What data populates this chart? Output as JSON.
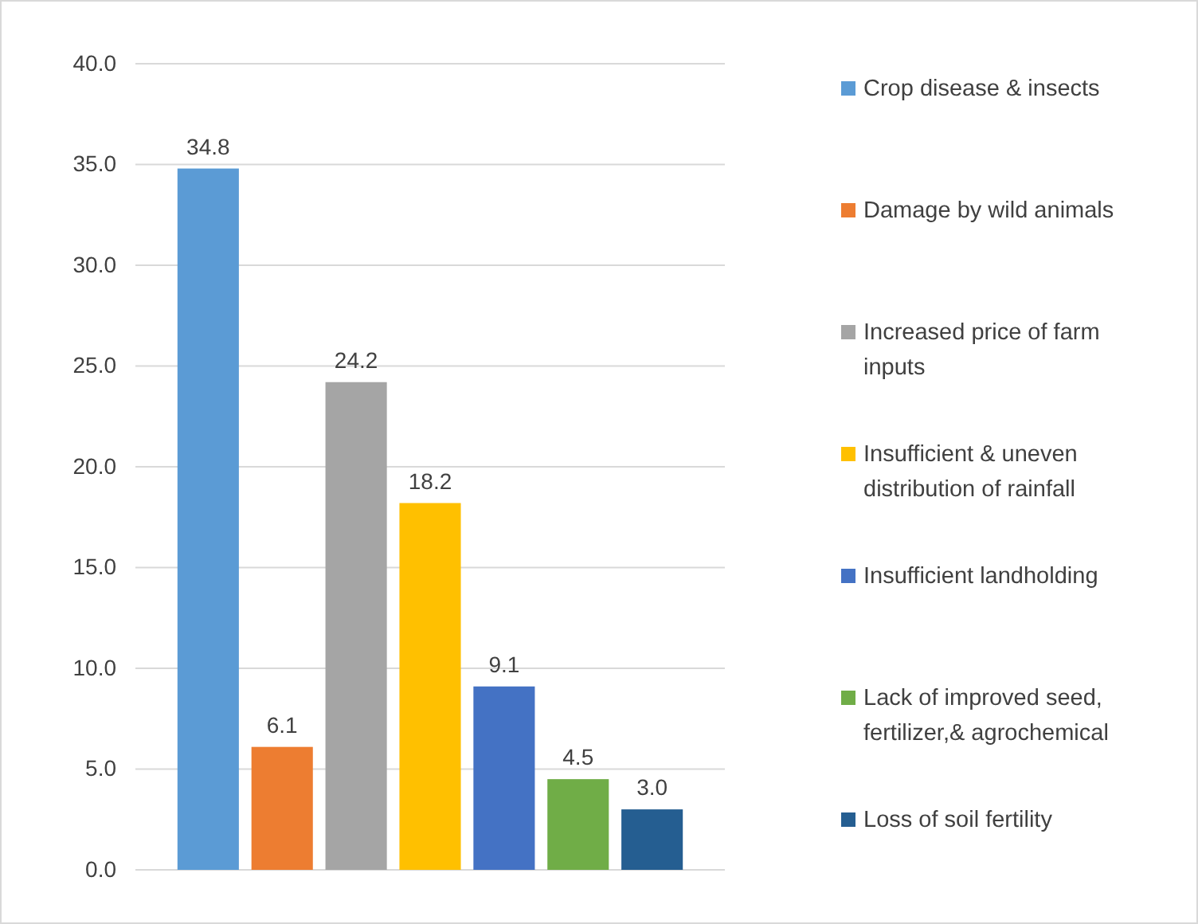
{
  "chart_data": {
    "type": "bar",
    "categories": [
      null
    ],
    "series": [
      {
        "name": "Crop disease & insects",
        "color": "#5b9bd5",
        "values": [
          34.8
        ],
        "value_labels": [
          "34.8"
        ]
      },
      {
        "name": "Damage by wild animals",
        "color": "#ed7d31",
        "values": [
          6.1
        ],
        "value_labels": [
          "6.1"
        ]
      },
      {
        "name": "Increased price of farm inputs",
        "color": "#a5a5a5",
        "values": [
          24.2
        ],
        "value_labels": [
          "24.2"
        ]
      },
      {
        "name": "Insufficient & uneven distribution of rainfall",
        "color": "#ffc000",
        "values": [
          18.2
        ],
        "value_labels": [
          "18.2"
        ]
      },
      {
        "name": "Insufficient landholding",
        "color": "#4472c4",
        "values": [
          9.1
        ],
        "value_labels": [
          "9.1"
        ]
      },
      {
        "name": "Lack of improved seed, fertilizer,& agrochemical",
        "color": "#70ad47",
        "values": [
          4.5
        ],
        "value_labels": [
          "4.5"
        ]
      },
      {
        "name": "Loss of soil fertility",
        "color": "#255e91",
        "values": [
          3
        ],
        "value_labels": [
          "3.0"
        ]
      }
    ],
    "ylim": [
      0,
      40
    ],
    "yticks": [
      {
        "value": 0,
        "label": "0.0"
      },
      {
        "value": 5,
        "label": "5.0"
      },
      {
        "value": 10,
        "label": "10.0"
      },
      {
        "value": 15,
        "label": "15.0"
      },
      {
        "value": 20,
        "label": "20.0"
      },
      {
        "value": 25,
        "label": "25.0"
      },
      {
        "value": 30,
        "label": "30.0"
      },
      {
        "value": 35,
        "label": "35.0"
      },
      {
        "value": 40,
        "label": "40.0"
      }
    ],
    "grid": "y",
    "legend": "right"
  }
}
